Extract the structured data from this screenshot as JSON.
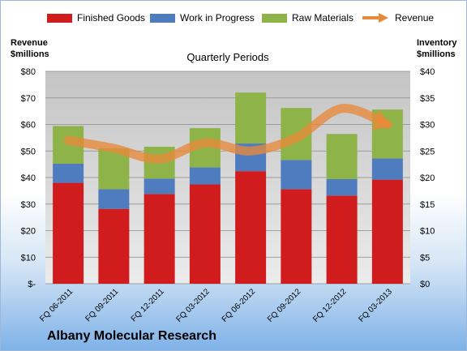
{
  "chart_data": {
    "type": "bar",
    "stacked": true,
    "categories": [
      "FQ 06-2011",
      "FQ 09-2011",
      "FQ 12-2011",
      "FQ 03-2012",
      "FQ 06-2012",
      "FQ 09-2012",
      "FQ 12-2012",
      "FQ 03-2013"
    ],
    "series": [
      {
        "name": "Finished Goods",
        "axis": "right",
        "color": "#d01c1c",
        "values": [
          19.0,
          14.1,
          16.9,
          18.7,
          21.2,
          17.8,
          16.6,
          19.6
        ]
      },
      {
        "name": "Work in Progress",
        "axis": "right",
        "color": "#4f7bbf",
        "values": [
          3.6,
          3.7,
          2.9,
          3.2,
          5.2,
          5.5,
          3.1,
          4.0
        ]
      },
      {
        "name": "Raw Materials",
        "axis": "right",
        "color": "#8eb348",
        "values": [
          7.1,
          7.7,
          6.0,
          7.4,
          9.6,
          9.8,
          8.5,
          9.2
        ]
      },
      {
        "name": "Revenue",
        "type": "line",
        "axis": "left",
        "color": "#e8893a",
        "values": [
          54,
          51,
          47,
          53,
          50,
          55,
          66,
          60
        ]
      }
    ],
    "title": "Quarterly Periods",
    "left_axis": {
      "label_line1": "Revenue",
      "label_line2": "$millions",
      "ylim": [
        0,
        80
      ],
      "tick_labels": [
        "$-",
        "$10",
        "$20",
        "$30",
        "$40",
        "$50",
        "$60",
        "$70",
        "$80"
      ]
    },
    "right_axis": {
      "label_line1": "Inventory",
      "label_line2": "$millions",
      "ylim": [
        0,
        40
      ],
      "tick_labels": [
        "$0",
        "$5",
        "$10",
        "$15",
        "$20",
        "$25",
        "$30",
        "$35",
        "$40"
      ]
    },
    "grid": true,
    "legend_position": "top"
  },
  "company_name": "Albany Molecular Research"
}
